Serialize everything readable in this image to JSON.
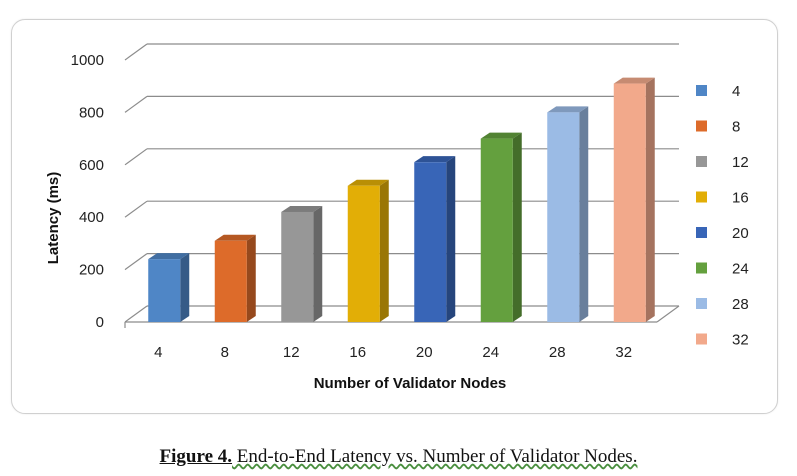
{
  "chart_data": {
    "type": "bar",
    "categories": [
      "4",
      "8",
      "12",
      "16",
      "20",
      "24",
      "28",
      "32"
    ],
    "values": [
      240,
      310,
      420,
      520,
      610,
      700,
      800,
      910
    ],
    "xlabel": "Number of Validator Nodes",
    "ylabel": "Latency (ms)",
    "ylim": [
      0,
      1000
    ],
    "yticks": [
      "0",
      "200",
      "400",
      "600",
      "800",
      "1000"
    ],
    "legend": [
      "4",
      "8",
      "12",
      "16",
      "20",
      "24",
      "28",
      "32"
    ],
    "legend_position": "right",
    "grid": true,
    "style": "3d-column",
    "colors": [
      "#4f86c6",
      "#dd6b2a",
      "#979797",
      "#e2ae06",
      "#3865b7",
      "#64a03e",
      "#9bbbe5",
      "#f2a98b"
    ]
  },
  "caption": {
    "lead": "Figure  4.",
    "text": " End-to-End Latency vs. Number of Validator Nodes."
  }
}
